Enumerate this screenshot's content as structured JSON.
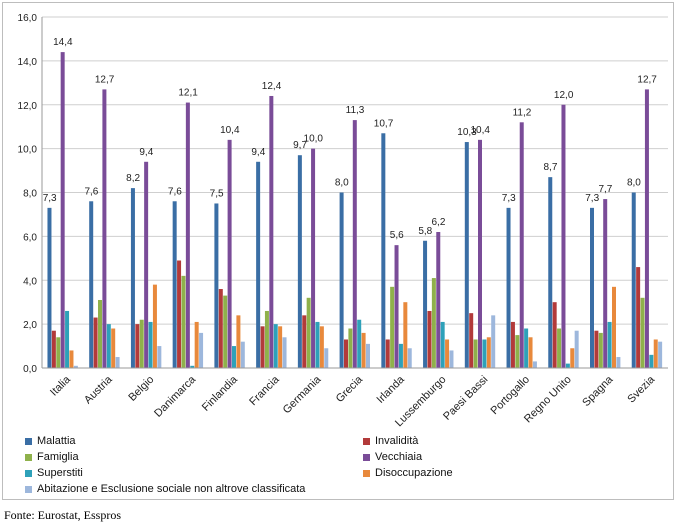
{
  "source": "Fonte: Eurostat, Esspros",
  "chart_data": {
    "type": "bar",
    "title": "",
    "xlabel": "",
    "ylabel": "",
    "ylim": [
      0,
      16
    ],
    "y_ticks": [
      "0,0",
      "2,0",
      "4,0",
      "6,0",
      "8,0",
      "10,0",
      "12,0",
      "14,0",
      "16,0"
    ],
    "grid": true,
    "legend_placement": "bottom",
    "categories": [
      "Italia",
      "Austria",
      "Belgio",
      "Danimarca",
      "Finlandia",
      "Francia",
      "Germania",
      "Grecia",
      "Irlanda",
      "Lussemburgo",
      "Paesi Bassi",
      "Portogallo",
      "Regno Unito",
      "Spagna",
      "Svezia"
    ],
    "series": [
      {
        "name": "Malattia",
        "color": "#3a6ea5",
        "values": [
          7.3,
          7.6,
          8.2,
          7.6,
          7.5,
          9.4,
          9.7,
          8.0,
          10.7,
          5.8,
          10.3,
          7.3,
          8.7,
          7.3,
          8.0
        ],
        "labels": [
          "7,3",
          "7,6",
          "8,2",
          "7,6",
          "7,5",
          "9,4",
          "9,7",
          "8,0",
          "10,7",
          "5,8",
          "10,3",
          "7,3",
          "8,7",
          "7,3",
          "8,0"
        ]
      },
      {
        "name": "Invalidità",
        "color": "#b23a3a",
        "values": [
          1.7,
          2.3,
          2.0,
          4.9,
          3.6,
          1.9,
          2.4,
          1.3,
          1.3,
          2.6,
          2.5,
          2.1,
          3.0,
          1.7,
          4.6
        ]
      },
      {
        "name": "Famiglia",
        "color": "#8fb14b",
        "values": [
          1.4,
          3.1,
          2.2,
          4.2,
          3.3,
          2.6,
          3.2,
          1.8,
          3.7,
          4.1,
          1.3,
          1.5,
          1.8,
          1.6,
          3.2
        ]
      },
      {
        "name": "Vecchiaia",
        "color": "#7a4c98",
        "values": [
          14.4,
          12.7,
          9.4,
          12.1,
          10.4,
          12.4,
          10.0,
          11.3,
          5.6,
          6.2,
          10.4,
          11.2,
          12.0,
          7.7,
          12.7
        ],
        "labels": [
          "14,4",
          "12,7",
          "9,4",
          "12,1",
          "10,4",
          "12,4",
          "10,0",
          "11,3",
          "5,6",
          "6,2",
          "10,4",
          "11,2",
          "12,0",
          "7,7",
          "12,7"
        ]
      },
      {
        "name": "Superstiti",
        "color": "#2ea1b9",
        "values": [
          2.6,
          2.0,
          2.1,
          0.1,
          1.0,
          2.0,
          2.1,
          2.2,
          1.1,
          2.1,
          1.3,
          1.8,
          0.2,
          2.1,
          0.6
        ]
      },
      {
        "name": "Disoccupazione",
        "color": "#e8893c",
        "values": [
          0.8,
          1.8,
          3.8,
          2.1,
          2.4,
          1.9,
          1.9,
          1.6,
          3.0,
          1.3,
          1.4,
          1.4,
          0.9,
          3.7,
          1.3
        ]
      },
      {
        "name": "Abitazione e Esclusione sociale non altrove classificata",
        "color": "#9db7dc",
        "values": [
          0.1,
          0.5,
          1.0,
          1.6,
          1.2,
          1.4,
          0.9,
          1.1,
          0.9,
          0.8,
          2.4,
          0.3,
          1.7,
          0.5,
          1.2
        ]
      }
    ]
  }
}
